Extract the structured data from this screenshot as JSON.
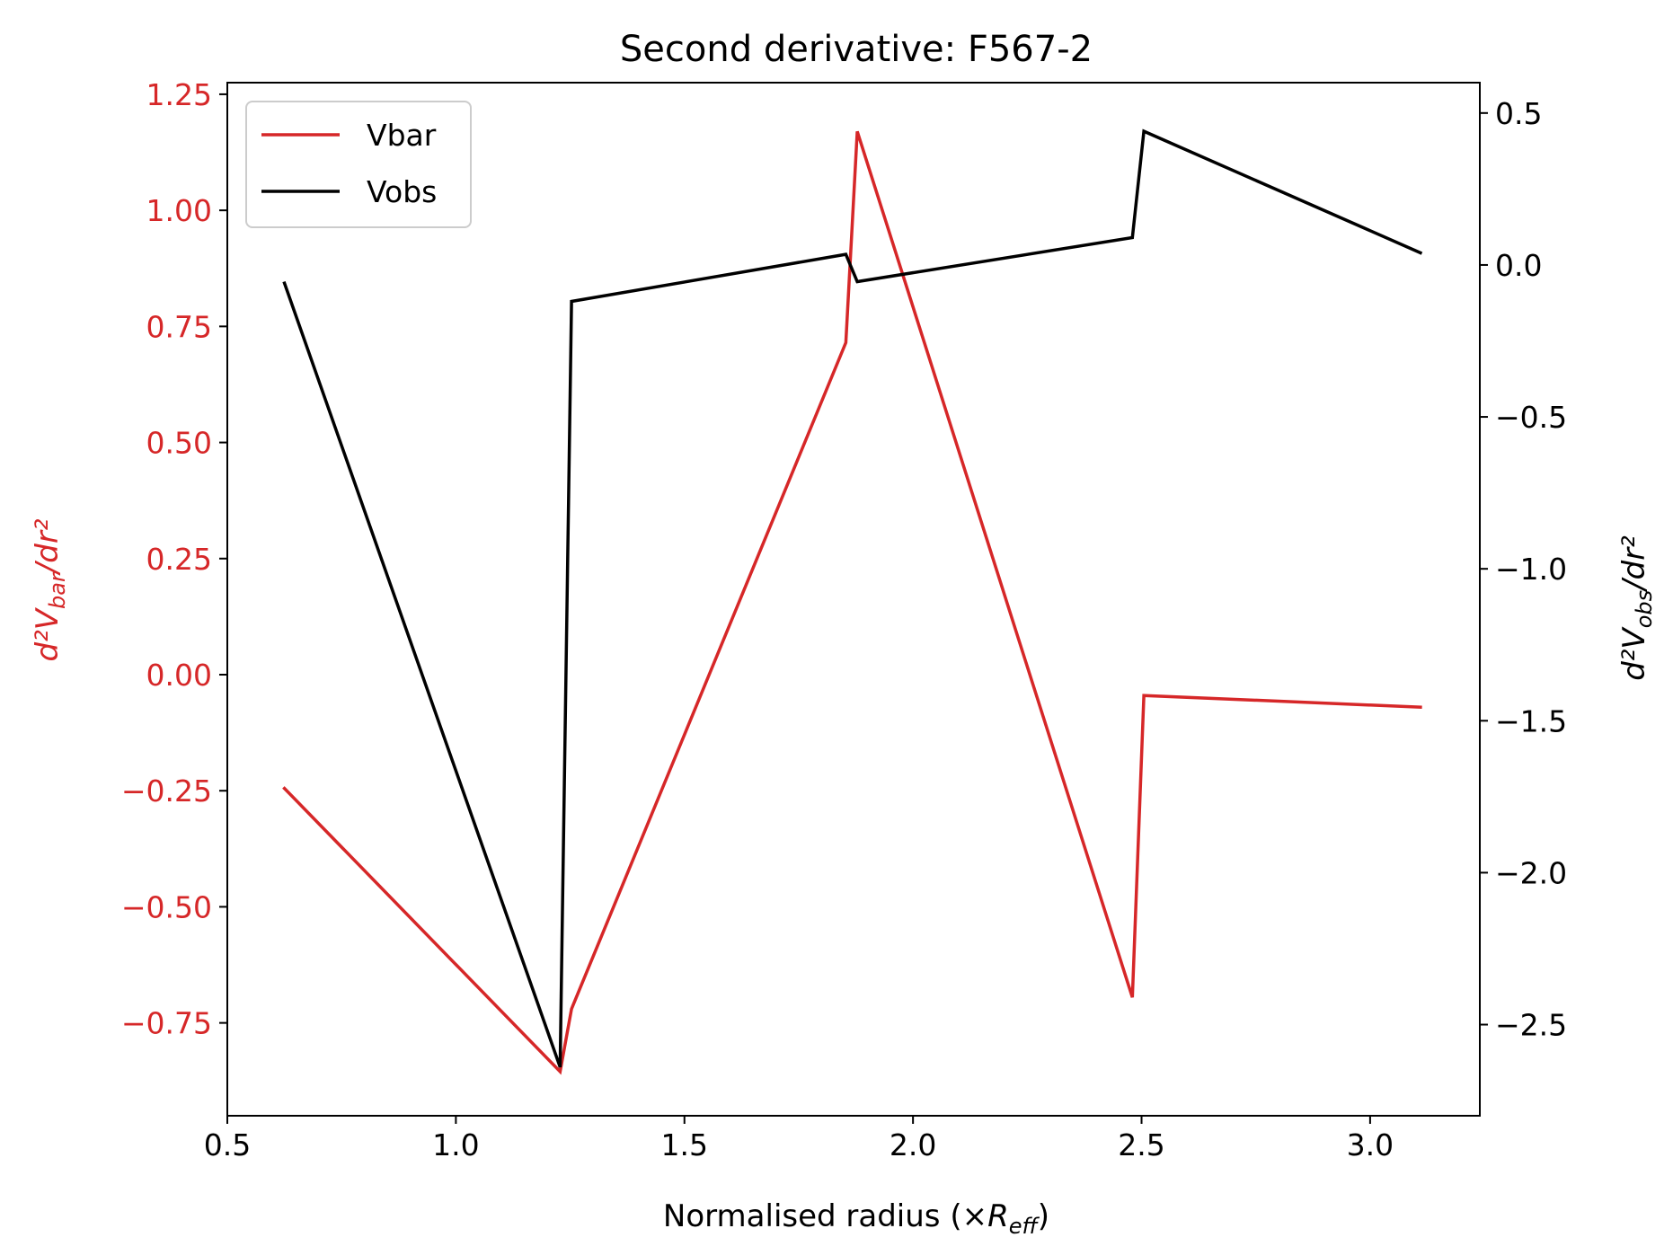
{
  "chart_data": {
    "type": "line",
    "title": "Second derivative: F567-2",
    "xlabel": {
      "prefix": "Normalised radius (×",
      "italic": "R",
      "sub": "eff",
      "suffix": ")"
    },
    "ylabel_left": {
      "text": "d²V",
      "sub": "bar",
      "suffix": "/dr²"
    },
    "ylabel_right": {
      "text": "d²V",
      "sub": "obs",
      "suffix": "/dr²"
    },
    "xlim": [
      0.5,
      3.24
    ],
    "ylim_left": [
      -0.95,
      1.275
    ],
    "ylim_right": [
      -2.8,
      0.6
    ],
    "x_ticks": [
      "0.5",
      "1.0",
      "1.5",
      "2.0",
      "2.5",
      "3.0"
    ],
    "x_tick_values": [
      0.5,
      1.0,
      1.5,
      2.0,
      2.5,
      3.0
    ],
    "y_left_ticks": [
      "−0.75",
      "−0.50",
      "−0.25",
      "0.00",
      "0.25",
      "0.50",
      "0.75",
      "1.00",
      "1.25"
    ],
    "y_left_tick_values": [
      -0.75,
      -0.5,
      -0.25,
      0.0,
      0.25,
      0.5,
      0.75,
      1.0,
      1.25
    ],
    "y_right_ticks": [
      "−2.5",
      "−2.0",
      "−1.5",
      "−1.0",
      "−0.5",
      "0.0",
      "0.5"
    ],
    "y_right_tick_values": [
      -2.5,
      -2.0,
      -1.5,
      -1.0,
      -0.5,
      0.0,
      0.5
    ],
    "legend_position": "upper-left",
    "grid": false,
    "series": [
      {
        "name": "Vbar",
        "axis": "left",
        "color": "#d62728",
        "x": [
          0.625,
          1.228,
          1.253,
          1.853,
          1.878,
          2.48,
          2.505,
          3.11
        ],
        "y": [
          -0.245,
          -0.855,
          -0.72,
          0.715,
          1.17,
          -0.695,
          -0.045,
          -0.07
        ]
      },
      {
        "name": "Vobs",
        "axis": "right",
        "color": "#000000",
        "x": [
          0.625,
          1.228,
          1.253,
          1.853,
          1.878,
          2.48,
          2.505,
          3.11
        ],
        "y": [
          -0.06,
          -2.64,
          -0.12,
          0.035,
          -0.055,
          0.09,
          0.44,
          0.04
        ]
      }
    ]
  }
}
